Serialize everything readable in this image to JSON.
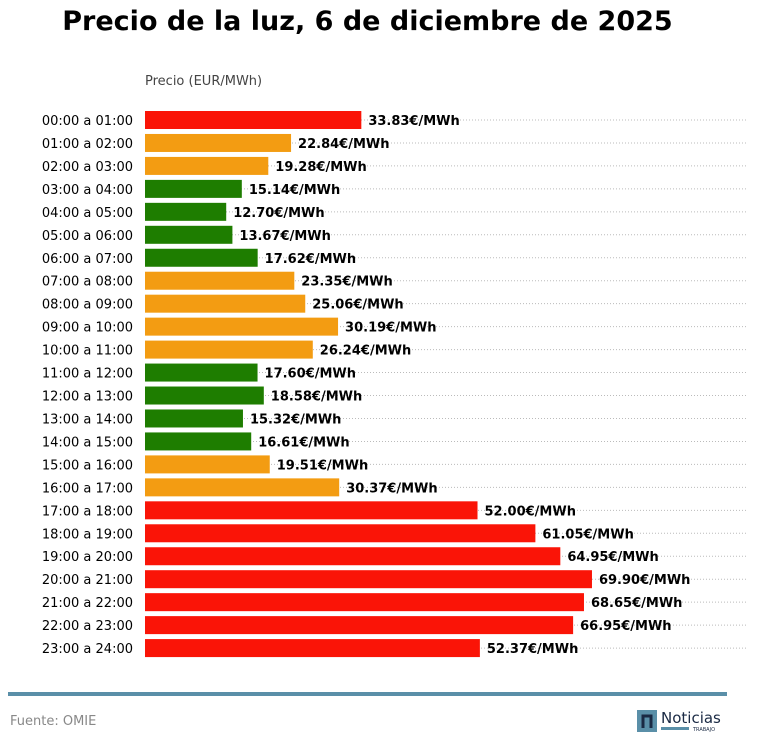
{
  "chart_data": {
    "type": "bar",
    "orientation": "horizontal",
    "title": "Precio de la luz, 6 de diciembre de 2025",
    "xlabel": "Precio (EUR/MWh)",
    "ylabel": "",
    "value_suffix": "€/MWh",
    "categories": [
      "00:00 a 01:00",
      "01:00 a 02:00",
      "02:00 a 03:00",
      "03:00 a 04:00",
      "04:00 a 05:00",
      "05:00 a 06:00",
      "06:00 a 07:00",
      "07:00 a 08:00",
      "08:00 a 09:00",
      "09:00 a 10:00",
      "10:00 a 11:00",
      "11:00 a 12:00",
      "12:00 a 13:00",
      "13:00 a 14:00",
      "14:00 a 15:00",
      "15:00 a 16:00",
      "16:00 a 17:00",
      "17:00 a 18:00",
      "18:00 a 19:00",
      "19:00 a 20:00",
      "20:00 a 21:00",
      "21:00 a 22:00",
      "22:00 a 23:00",
      "23:00 a 24:00"
    ],
    "values": [
      33.83,
      22.84,
      19.28,
      15.14,
      12.7,
      13.67,
      17.62,
      23.35,
      25.06,
      30.19,
      26.24,
      17.6,
      18.58,
      15.32,
      16.61,
      19.51,
      30.37,
      52.0,
      61.05,
      64.95,
      69.9,
      68.65,
      66.95,
      52.37
    ],
    "levels": [
      "high",
      "mid",
      "mid",
      "low",
      "low",
      "low",
      "low",
      "mid",
      "mid",
      "mid",
      "mid",
      "low",
      "low",
      "low",
      "low",
      "mid",
      "mid",
      "high",
      "high",
      "high",
      "high",
      "high",
      "high",
      "high"
    ],
    "colors": {
      "high": "#fa1407",
      "mid": "#f39c12",
      "low": "#1e7d00"
    },
    "xlim": [
      0,
      94.3
    ],
    "grid": "horizontal dotted"
  },
  "footer": {
    "source": "Fuente: OMIE",
    "logo_text": "Noticias",
    "logo_subtext": "TRABAJO"
  },
  "accent": "#5a8fa8"
}
